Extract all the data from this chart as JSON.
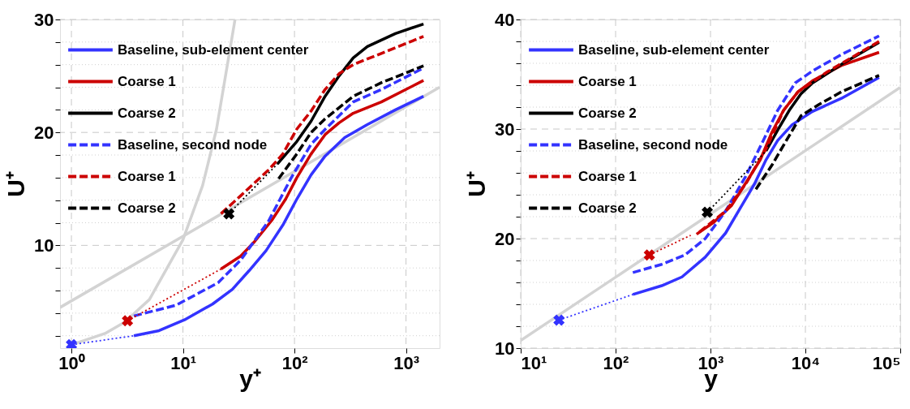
{
  "chart_data": [
    {
      "type": "line",
      "xlabel": "y⁺",
      "ylabel": "U⁺",
      "log": "x",
      "xlim": [
        0.79,
        2000
      ],
      "ylim": [
        0.9,
        30
      ],
      "xticks": [
        {
          "value": 1,
          "label": "10⁰"
        },
        {
          "value": 10,
          "label": "10¹"
        },
        {
          "value": 100,
          "label": "10²"
        },
        {
          "value": 1000,
          "label": "10³"
        }
      ],
      "yticks": [
        {
          "value": 2,
          "label": null
        },
        {
          "value": 4,
          "label": null
        },
        {
          "value": 6,
          "label": null
        },
        {
          "value": 8,
          "label": null
        },
        10,
        {
          "value": 12,
          "label": null
        },
        {
          "value": 14,
          "label": null
        },
        {
          "value": 16,
          "label": null
        },
        {
          "value": 18,
          "label": null
        },
        20,
        {
          "value": 22,
          "label": null
        },
        {
          "value": 24,
          "label": null
        },
        {
          "value": 26,
          "label": null
        },
        {
          "value": 28,
          "label": null
        },
        30
      ],
      "grid": true,
      "legend": "top left",
      "series": [
        {
          "color": "#d3d3d3",
          "line_style": "solid",
          "x": [
            1,
            2,
            3,
            5,
            10,
            15,
            20,
            29.3
          ],
          "values": [
            1.2,
            2.2,
            3.2,
            5.2,
            10.5,
            15.3,
            20.3,
            30
          ]
        },
        {
          "color": "#d3d3d3",
          "line_style": "solid",
          "x": [
            0.79,
            10.8,
            2000
          ],
          "values": [
            4.5,
            11.0,
            24.0
          ]
        },
        {
          "name": "Baseline, sub-element center",
          "color": "#3333ff",
          "line_style": "solid",
          "x": [
            3.63,
            6.1,
            10.3,
            18.4,
            27.7,
            39.2,
            55.6,
            78.7,
            105,
            141,
            188,
            282,
            450,
            803,
            1435
          ],
          "values": [
            2.0,
            2.45,
            3.4,
            4.8,
            6.1,
            7.76,
            9.53,
            11.8,
            14.1,
            16.25,
            17.9,
            19.55,
            20.7,
            22.0,
            23.2
          ]
        },
        {
          "name": "Coarse 1",
          "color": "#cc0000",
          "line_style": "solid",
          "x": [
            21.9,
            33,
            44,
            62.4,
            83.4,
            105,
            141,
            188,
            251,
            336,
            601,
            1435
          ],
          "values": [
            7.9,
            9.06,
            10.35,
            12.2,
            14.1,
            16.0,
            18.1,
            19.8,
            20.85,
            21.7,
            22.7,
            24.6
          ]
        },
        {
          "name": "Coarse 2",
          "color": "#000000",
          "line_style": "solid",
          "x": [
            70.2,
            105,
            141,
            188,
            251,
            336,
            450,
            803,
            1435
          ],
          "values": [
            17.2,
            19.2,
            21.0,
            23.2,
            25.0,
            26.6,
            27.6,
            28.75,
            29.6
          ]
        },
        {
          "name": "Baseline, second node",
          "color": "#3333ff",
          "line_style": "dashed",
          "x": [
            3.63,
            8.67,
            20.7,
            33,
            58.9,
            93.7,
            141,
            188,
            336,
            601,
            1435
          ],
          "values": [
            3.75,
            4.7,
            6.7,
            8.7,
            12.2,
            16.0,
            18.96,
            20.26,
            22.7,
            23.8,
            25.7
          ]
        },
        {
          "name": "Coarse 1",
          "color": "#cc0000",
          "line_style": "dashed",
          "x": [
            21.9,
            33,
            58.9,
            78.7,
            105,
            141,
            188,
            251,
            336,
            601,
            1435
          ],
          "values": [
            12.8,
            14.4,
            16.7,
            18.1,
            20.3,
            21.9,
            23.8,
            25.2,
            26.0,
            27.0,
            28.5
          ]
        },
        {
          "name": "Coarse 2",
          "color": "#000000",
          "line_style": "dashed",
          "x": [
            72,
            105,
            141,
            188,
            336,
            601,
            1435
          ],
          "values": [
            15.9,
            18.1,
            20.0,
            21.2,
            23.2,
            24.4,
            25.9
          ]
        },
        {
          "color": "#3333ff",
          "line_style": "dotted",
          "x": [
            1,
            3.63
          ],
          "values": [
            1.2,
            2.0
          ]
        },
        {
          "color": "#cc0000",
          "line_style": "dotted",
          "x": [
            3.18,
            21.9
          ],
          "values": [
            3.33,
            7.9
          ]
        },
        {
          "color": "#000000",
          "line_style": "dotted",
          "x": [
            25.8,
            70.2
          ],
          "values": [
            12.8,
            17.2
          ]
        },
        {
          "type": "scatter",
          "marker": "cross",
          "color": "#3333ff",
          "x": [
            1
          ],
          "values": [
            1.2
          ]
        },
        {
          "type": "scatter",
          "marker": "cross",
          "color": "#cc0000",
          "x": [
            3.18
          ],
          "values": [
            3.33
          ]
        },
        {
          "type": "scatter",
          "marker": "cross",
          "color": "#000000",
          "x": [
            25.8
          ],
          "values": [
            12.8
          ]
        }
      ]
    },
    {
      "type": "line",
      "xlabel": "y",
      "ylabel": "U⁺",
      "log": "x",
      "xlim": [
        10,
        100000
      ],
      "ylim": [
        10,
        40
      ],
      "xticks": [
        {
          "value": 10,
          "label": "10¹"
        },
        {
          "value": 100,
          "label": "10²"
        },
        {
          "value": 1000,
          "label": "10³"
        },
        {
          "value": 10000,
          "label": "10⁴"
        },
        {
          "value": 100000,
          "label": "10⁵"
        }
      ],
      "yticks": [
        10,
        {
          "value": 12,
          "label": null
        },
        {
          "value": 14,
          "label": null
        },
        {
          "value": 16,
          "label": null
        },
        {
          "value": 18,
          "label": null
        },
        20,
        {
          "value": 22,
          "label": null
        },
        {
          "value": 24,
          "label": null
        },
        {
          "value": 26,
          "label": null
        },
        {
          "value": 28,
          "label": null
        },
        30,
        {
          "value": 32,
          "label": null
        },
        {
          "value": 34,
          "label": null
        },
        {
          "value": 36,
          "label": null
        },
        {
          "value": 38,
          "label": null
        },
        40
      ],
      "grid": true,
      "legend": "top left",
      "series": [
        {
          "color": "#d3d3d3",
          "line_style": "solid",
          "x": [
            10,
            100000
          ],
          "values": [
            10.7,
            33.8
          ]
        },
        {
          "name": "Baseline, sub-element center",
          "color": "#3333ff",
          "line_style": "solid",
          "x": [
            152,
            307,
            501,
            881,
            1442,
            2198,
            2913,
            3855,
            5105,
            7261,
            11880,
            24000,
            59800
          ],
          "values": [
            14.9,
            15.7,
            16.5,
            18.3,
            20.5,
            23.2,
            25.0,
            27.2,
            28.95,
            30.4,
            31.6,
            32.8,
            34.7
          ]
        },
        {
          "name": "Coarse 1",
          "color": "#cc0000",
          "line_style": "solid",
          "x": [
            713,
            1088,
            1660,
            2530,
            3350,
            4440,
            5890,
            8360,
            11880,
            24000,
            59800
          ],
          "values": [
            20.4,
            21.5,
            23.0,
            25.5,
            27.2,
            29.7,
            31.7,
            33.4,
            34.4,
            35.8,
            37.0
          ]
        },
        {
          "name": "Coarse 2",
          "color": "#000000",
          "line_style": "solid",
          "x": [
            3855,
            5105,
            6760,
            8970,
            11880,
            24000,
            59800
          ],
          "values": [
            28.0,
            29.9,
            31.7,
            33.2,
            34.2,
            35.9,
            37.9
          ]
        },
        {
          "name": "Baseline, second node",
          "color": "#3333ff",
          "line_style": "dashed",
          "x": [
            152,
            307,
            538,
            881,
            1442,
            2356,
            3600,
            5105,
            7800,
            11880,
            24000,
            59800
          ],
          "values": [
            16.9,
            17.65,
            18.5,
            20.0,
            22.5,
            25.7,
            28.95,
            31.7,
            34.2,
            35.3,
            36.8,
            38.5
          ]
        },
        {
          "name": "Coarse 1",
          "color": "#cc0000",
          "line_style": "dashed",
          "x": [
            765,
            1442,
            2356,
            3855,
            5890,
            8360,
            16900,
            59800
          ],
          "values": [
            20.6,
            22.5,
            25.0,
            28.2,
            31.7,
            33.4,
            35.2,
            38.0
          ]
        },
        {
          "name": "Coarse 2",
          "color": "#000000",
          "line_style": "dashed",
          "x": [
            3010,
            4440,
            6300,
            8970,
            13680,
            24000,
            59800
          ],
          "values": [
            24.5,
            26.7,
            28.95,
            31.2,
            32.2,
            33.4,
            34.9
          ]
        },
        {
          "color": "#3333ff",
          "line_style": "dotted",
          "x": [
            25.3,
            152
          ],
          "values": [
            12.56,
            14.9
          ]
        },
        {
          "color": "#cc0000",
          "line_style": "dotted",
          "x": [
            227,
            619
          ],
          "values": [
            18.5,
            20.3
          ]
        },
        {
          "color": "#000000",
          "line_style": "dotted",
          "x": [
            925,
            3855
          ],
          "values": [
            22.4,
            28.0
          ]
        },
        {
          "type": "scatter",
          "marker": "cross",
          "color": "#3333ff",
          "x": [
            25.3
          ],
          "values": [
            12.56
          ]
        },
        {
          "type": "scatter",
          "marker": "cross",
          "color": "#cc0000",
          "x": [
            227
          ],
          "values": [
            18.5
          ]
        },
        {
          "type": "scatter",
          "marker": "cross",
          "color": "#000000",
          "x": [
            925
          ],
          "values": [
            22.4
          ]
        }
      ]
    }
  ]
}
